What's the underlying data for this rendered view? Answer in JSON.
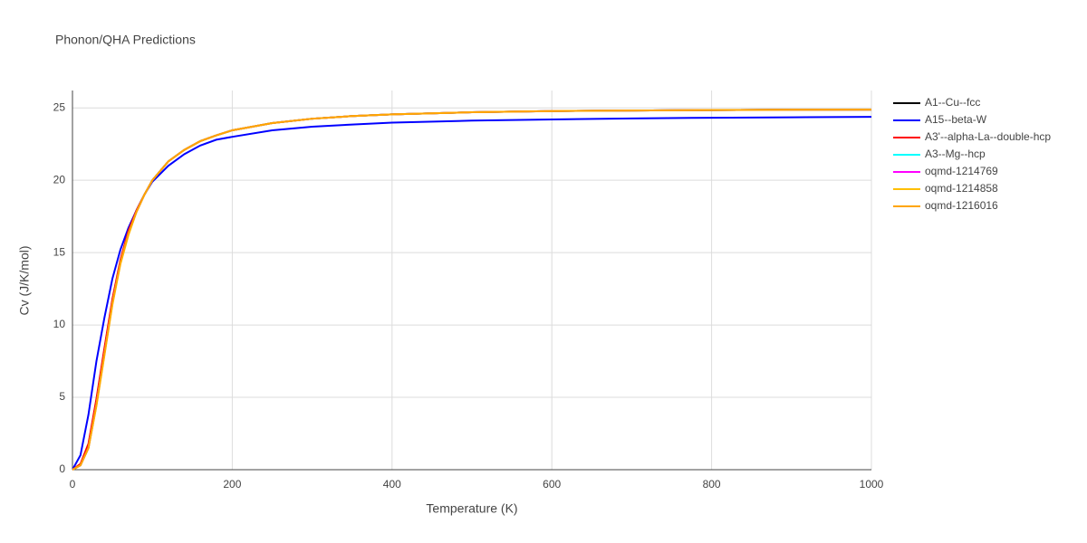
{
  "chart_data": {
    "type": "line",
    "title": "Phonon/QHA Predictions",
    "x_label": "Temperature (K)",
    "y_label": "Cv (J/K/mol)",
    "x": [
      0,
      10,
      20,
      30,
      40,
      50,
      60,
      70,
      80,
      90,
      100,
      120,
      140,
      160,
      180,
      200,
      250,
      300,
      350,
      400,
      500,
      600,
      700,
      800,
      900,
      1000
    ],
    "series": [
      {
        "name": "A1--Cu--fcc",
        "color": "#000000",
        "values": [
          0,
          0.3,
          1.6,
          4.6,
          8.1,
          11.6,
          14.4,
          16.4,
          17.9,
          19.0,
          20.0,
          21.3,
          22.1,
          22.7,
          23.1,
          23.45,
          23.95,
          24.25,
          24.43,
          24.55,
          24.7,
          24.78,
          24.82,
          24.85,
          24.87,
          24.88
        ]
      },
      {
        "name": "A15--beta-W",
        "color": "#0000ff",
        "values": [
          0,
          1.0,
          3.8,
          7.5,
          10.5,
          13.2,
          15.2,
          16.7,
          17.9,
          19.0,
          19.9,
          21.0,
          21.8,
          22.4,
          22.8,
          23.0,
          23.45,
          23.7,
          23.85,
          23.98,
          24.12,
          24.2,
          24.27,
          24.32,
          24.35,
          24.38
        ]
      },
      {
        "name": "A3'--alpha-La--double-hcp",
        "color": "#ff0000",
        "values": [
          0,
          0.4,
          1.8,
          4.9,
          8.4,
          11.8,
          14.5,
          16.5,
          17.9,
          19.0,
          20.0,
          21.3,
          22.1,
          22.7,
          23.1,
          23.45,
          23.95,
          24.25,
          24.43,
          24.55,
          24.7,
          24.78,
          24.82,
          24.85,
          24.87,
          24.88
        ]
      },
      {
        "name": "A3--Mg--hcp",
        "color": "#00ffff",
        "values": [
          0,
          0.3,
          1.5,
          4.5,
          8.0,
          11.5,
          14.3,
          16.3,
          17.8,
          19.0,
          20.0,
          21.3,
          22.1,
          22.7,
          23.1,
          23.45,
          23.95,
          24.25,
          24.43,
          24.55,
          24.7,
          24.78,
          24.82,
          24.85,
          24.87,
          24.88
        ]
      },
      {
        "name": "oqmd-1214769",
        "color": "#ff00ff",
        "values": [
          0,
          0.3,
          1.5,
          4.5,
          8.0,
          11.5,
          14.3,
          16.3,
          17.8,
          19.0,
          20.0,
          21.3,
          22.1,
          22.7,
          23.1,
          23.45,
          23.95,
          24.25,
          24.43,
          24.55,
          24.7,
          24.78,
          24.82,
          24.85,
          24.87,
          24.88
        ]
      },
      {
        "name": "oqmd-1214858",
        "color": "#ffbf00",
        "values": [
          0,
          0.3,
          1.5,
          4.4,
          7.9,
          11.4,
          14.2,
          16.2,
          17.8,
          19.0,
          20.0,
          21.3,
          22.1,
          22.7,
          23.1,
          23.45,
          23.95,
          24.25,
          24.43,
          24.55,
          24.7,
          24.78,
          24.82,
          24.85,
          24.87,
          24.88
        ]
      },
      {
        "name": "oqmd-1216016",
        "color": "#ffa500",
        "values": [
          0,
          0.3,
          1.5,
          4.5,
          8.0,
          11.5,
          14.3,
          16.3,
          17.8,
          19.0,
          20.0,
          21.3,
          22.1,
          22.7,
          23.1,
          23.45,
          23.95,
          24.25,
          24.43,
          24.55,
          24.7,
          24.78,
          24.82,
          24.85,
          24.87,
          24.88
        ]
      }
    ],
    "xlim": [
      0,
      1000
    ],
    "xticks": [
      0,
      200,
      400,
      600,
      800,
      1000
    ],
    "ylim": [
      0,
      26.2
    ],
    "yticks": [
      0,
      5,
      10,
      15,
      20,
      25
    ],
    "grid": true
  }
}
